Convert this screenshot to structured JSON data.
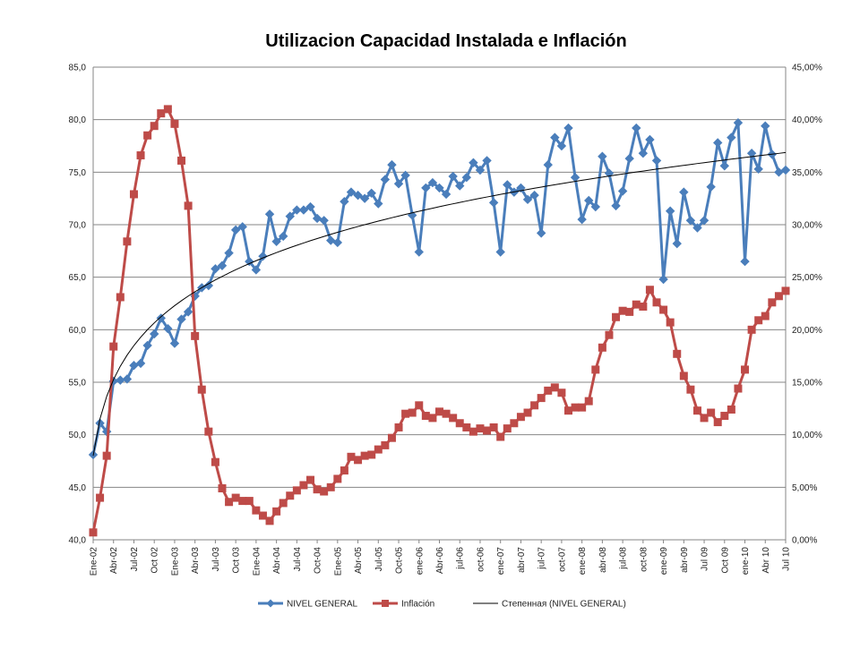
{
  "chart_data": {
    "type": "line",
    "title": "Utilizacion Capacidad Instalada e Inflación",
    "xlabel": "",
    "ylabel": "",
    "y_left_lim": [
      40,
      85
    ],
    "y_left_ticks": [
      "40,0",
      "45,0",
      "50,0",
      "55,0",
      "60,0",
      "65,0",
      "70,0",
      "75,0",
      "80,0",
      "85,0"
    ],
    "y_right_lim": [
      0,
      45
    ],
    "y_right_ticks": [
      "0,00%",
      "5,00%",
      "10,00%",
      "15,00%",
      "20,00%",
      "25,00%",
      "30,00%",
      "35,00%",
      "40,00%",
      "45,00%"
    ],
    "grid": "horizontal",
    "legend_position": "bottom",
    "x_tick_labels": [
      {
        "i": 0,
        "label": "Ene-02"
      },
      {
        "i": 3,
        "label": "Abr-02"
      },
      {
        "i": 6,
        "label": "Jul-02"
      },
      {
        "i": 9,
        "label": "Oct 02"
      },
      {
        "i": 12,
        "label": "Ene-03"
      },
      {
        "i": 15,
        "label": "Abr-03"
      },
      {
        "i": 18,
        "label": "Jul-03"
      },
      {
        "i": 21,
        "label": "Oct 03"
      },
      {
        "i": 24,
        "label": "Ene-04"
      },
      {
        "i": 27,
        "label": "Abr-04"
      },
      {
        "i": 30,
        "label": "Jul-04"
      },
      {
        "i": 33,
        "label": "Oct-04"
      },
      {
        "i": 36,
        "label": "Ene-05"
      },
      {
        "i": 39,
        "label": "Abr-05"
      },
      {
        "i": 42,
        "label": "Jul-05"
      },
      {
        "i": 45,
        "label": "Oct-05"
      },
      {
        "i": 48,
        "label": "ene-06"
      },
      {
        "i": 51,
        "label": "Abr-06"
      },
      {
        "i": 54,
        "label": "jul-06"
      },
      {
        "i": 57,
        "label": "oct-06"
      },
      {
        "i": 60,
        "label": "ene-07"
      },
      {
        "i": 63,
        "label": "abr-07"
      },
      {
        "i": 66,
        "label": "jul-07"
      },
      {
        "i": 69,
        "label": "oct-07"
      },
      {
        "i": 72,
        "label": "ene-08"
      },
      {
        "i": 75,
        "label": "abr-08"
      },
      {
        "i": 78,
        "label": "jul-08"
      },
      {
        "i": 81,
        "label": "oct-08"
      },
      {
        "i": 84,
        "label": "ene-09"
      },
      {
        "i": 87,
        "label": "abr-09"
      },
      {
        "i": 90,
        "label": "Jul 09"
      },
      {
        "i": 93,
        "label": "Oct 09"
      },
      {
        "i": 96,
        "label": "ene-10"
      },
      {
        "i": 99,
        "label": "Abr 10"
      },
      {
        "i": 102,
        "label": "Jul 10"
      }
    ],
    "series": [
      {
        "name": "NIVEL GENERAL",
        "axis": "left",
        "color": "#4A7EBB",
        "marker": "diamond",
        "values": [
          48.1,
          51.1,
          50.3,
          55.1,
          55.2,
          55.3,
          56.6,
          56.8,
          58.5,
          59.6,
          61.1,
          60.1,
          58.7,
          61.0,
          61.7,
          63.2,
          64.0,
          64.2,
          65.8,
          66.1,
          67.3,
          69.5,
          69.8,
          66.5,
          65.7,
          67.0,
          71.0,
          68.4,
          68.9,
          70.8,
          71.4,
          71.4,
          71.7,
          70.6,
          70.4,
          68.5,
          68.3,
          72.2,
          73.1,
          72.8,
          72.5,
          73.0,
          72.0,
          74.3,
          75.7,
          73.9,
          74.7,
          70.9,
          67.4,
          73.5,
          74.0,
          73.5,
          72.9,
          74.6,
          73.7,
          74.5,
          75.9,
          75.2,
          76.1,
          72.1,
          67.4,
          73.8,
          73.1,
          73.5,
          72.4,
          72.8,
          69.2,
          75.7,
          78.3,
          77.5,
          79.2,
          74.5,
          70.5,
          72.3,
          71.7,
          76.5,
          74.9,
          71.8,
          73.2,
          76.3,
          79.2,
          76.8,
          78.1,
          76.1,
          64.8,
          71.3,
          68.2,
          73.1,
          70.4,
          69.7,
          70.4,
          73.6,
          77.8,
          75.6,
          78.3,
          79.7,
          66.5,
          76.8,
          75.3,
          79.4,
          76.7,
          75.0,
          75.2
        ]
      },
      {
        "name": "Inflación",
        "axis": "right",
        "color": "#BE4B48",
        "marker": "square",
        "values": [
          0.7,
          4.0,
          8.0,
          18.4,
          23.1,
          28.4,
          32.9,
          36.6,
          38.5,
          39.4,
          40.6,
          41.0,
          39.6,
          36.1,
          31.8,
          19.4,
          14.3,
          10.3,
          7.4,
          4.9,
          3.6,
          4.0,
          3.7,
          3.7,
          2.8,
          2.3,
          1.8,
          2.7,
          3.5,
          4.2,
          4.7,
          5.2,
          5.7,
          4.8,
          4.6,
          5.0,
          5.8,
          6.6,
          7.9,
          7.6,
          8.0,
          8.1,
          8.6,
          9.0,
          9.7,
          10.7,
          12.0,
          12.1,
          12.8,
          11.8,
          11.6,
          12.2,
          12.0,
          11.6,
          11.1,
          10.7,
          10.3,
          10.6,
          10.4,
          10.7,
          9.8,
          10.6,
          11.1,
          11.7,
          12.1,
          12.8,
          13.5,
          14.2,
          14.5,
          14.0,
          12.3,
          12.6,
          12.6,
          13.2,
          16.2,
          18.3,
          19.5,
          21.2,
          21.8,
          21.7,
          22.4,
          22.2,
          23.8,
          22.6,
          21.9,
          20.7,
          17.7,
          15.6,
          14.3,
          12.3,
          11.6,
          12.1,
          11.2,
          11.8,
          12.4,
          14.4,
          16.2,
          20.0,
          20.9,
          21.3,
          22.6,
          23.2,
          23.7
        ]
      },
      {
        "name": "Степенная (NIVEL GENERAL)",
        "axis": "left",
        "color": "#000000",
        "marker": "none",
        "type": "power_trendline",
        "coefficients": {
          "a": 48.0,
          "b": 0.1016
        }
      }
    ]
  }
}
